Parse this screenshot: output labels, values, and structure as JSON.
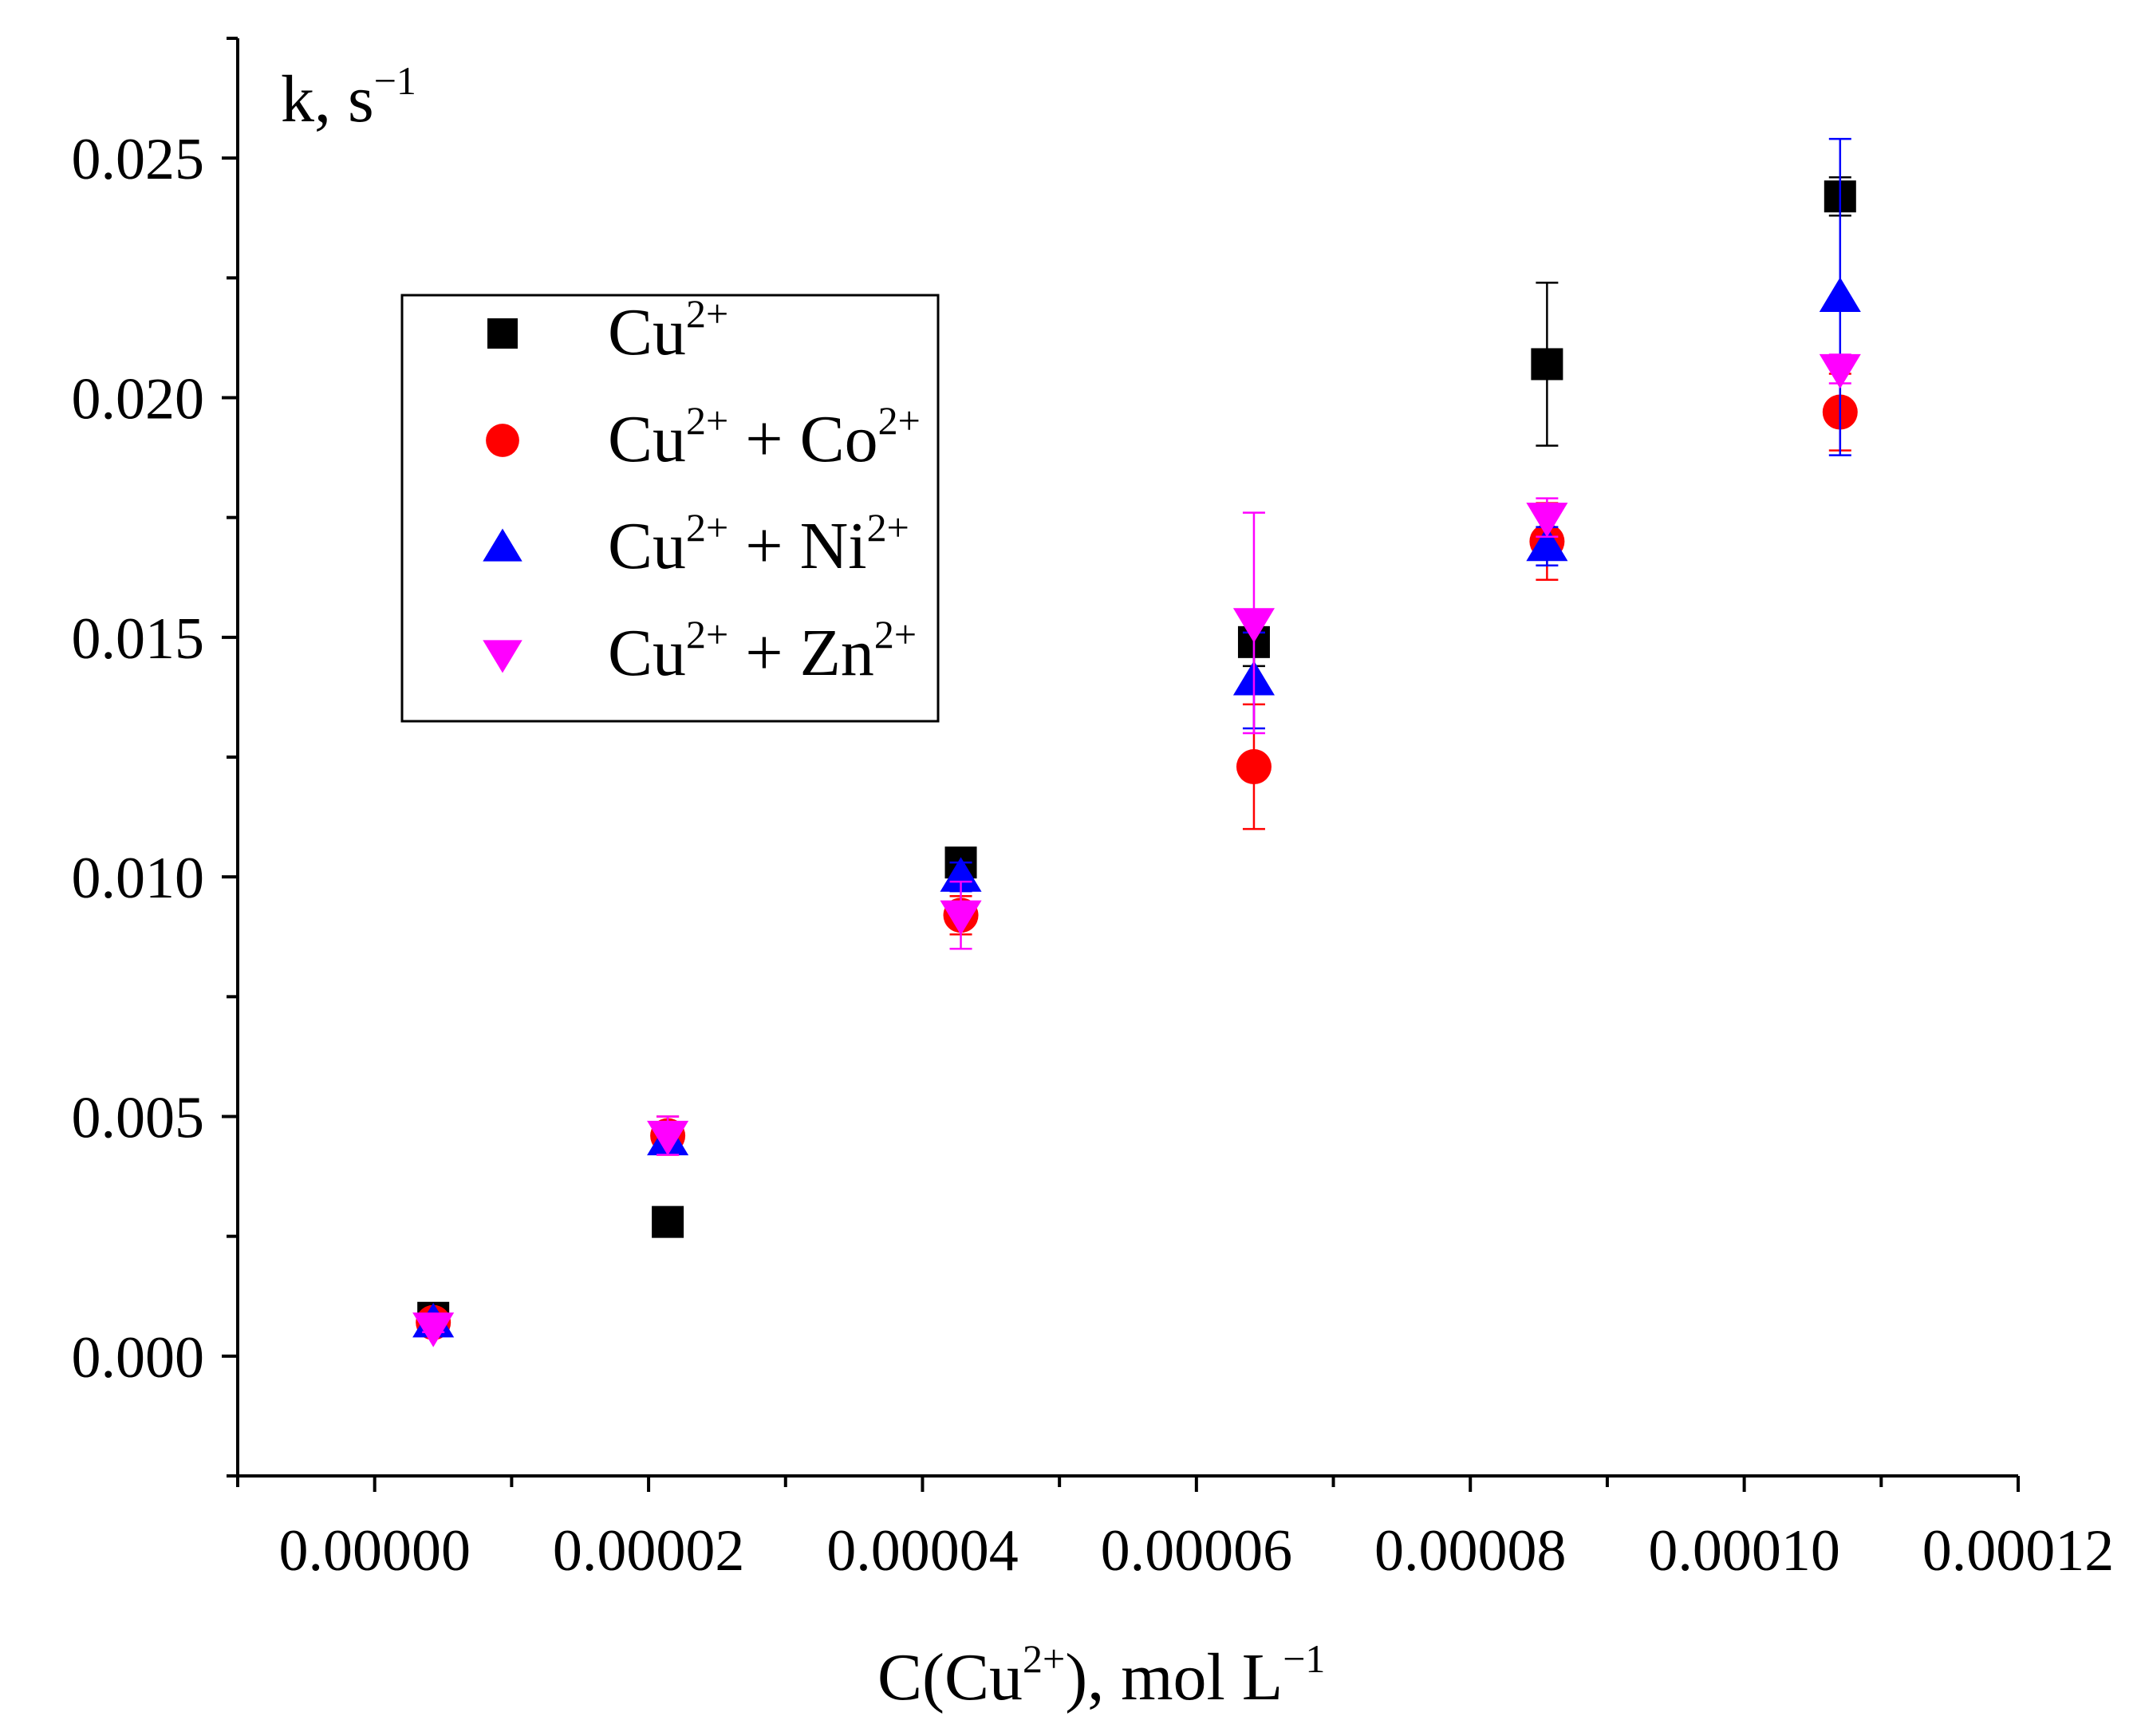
{
  "chart_data": {
    "type": "scatter",
    "title": "",
    "ylabel": {
      "base": "k, s",
      "sup": "−1"
    },
    "xlabel": {
      "pre": "C(Cu",
      "sup1": "2+",
      "mid": "), mol L",
      "sup2": "−1"
    },
    "xlim": [
      -1e-05,
      0.00012
    ],
    "ylim": [
      -0.0025,
      0.0275
    ],
    "x_ticks": [
      0.0,
      2e-05,
      4e-05,
      6e-05,
      8e-05,
      0.0001,
      0.00012
    ],
    "x_tick_labels": [
      "0.00000",
      "0.00002",
      "0.00004",
      "0.00006",
      "0.00008",
      "0.00010",
      "0.00012"
    ],
    "y_ticks": [
      0.0,
      0.005,
      0.01,
      0.015,
      0.02,
      0.025
    ],
    "y_tick_labels": [
      "0.000",
      "0.005",
      "0.010",
      "0.015",
      "0.020",
      "0.025"
    ],
    "legend_position": "upper-left",
    "series": [
      {
        "name": "Cu2+",
        "label_parts": [
          [
            "Cu",
            "2+"
          ]
        ],
        "marker": "square",
        "color": "#000000",
        "x": [
          4.28e-06,
          2.14e-05,
          4.28e-05,
          6.42e-05,
          8.56e-05,
          0.000107
        ],
        "y": [
          0.0008,
          0.0028,
          0.0103,
          0.0149,
          0.0207,
          0.0242
        ],
        "err": [
          0.0001,
          0.0001,
          0.0003,
          0.0005,
          0.0017,
          0.0004
        ]
      },
      {
        "name": "Cu2+ + Co2+",
        "label_parts": [
          [
            "Cu",
            "2+"
          ],
          [
            " + Co",
            "2+"
          ]
        ],
        "marker": "circle",
        "color": "#ff0000",
        "x": [
          4.28e-06,
          2.14e-05,
          4.28e-05,
          6.42e-05,
          8.56e-05,
          0.000107
        ],
        "y": [
          0.0007,
          0.0046,
          0.0092,
          0.0123,
          0.017,
          0.0197
        ],
        "err": [
          0.0001,
          0.0004,
          0.0004,
          0.0013,
          0.0008,
          0.0008
        ]
      },
      {
        "name": "Cu2+ + Ni2+",
        "label_parts": [
          [
            "Cu",
            "2+"
          ],
          [
            " + Ni",
            "2+"
          ]
        ],
        "marker": "triangle-up",
        "color": "#0000ff",
        "x": [
          4.28e-06,
          2.14e-05,
          4.28e-05,
          6.42e-05,
          8.56e-05,
          0.000107
        ],
        "y": [
          0.0007,
          0.0045,
          0.01,
          0.0141,
          0.0169,
          0.0221
        ],
        "err": [
          0.0001,
          0.0002,
          0.0003,
          0.001,
          0.0004,
          0.0033
        ]
      },
      {
        "name": "Cu2+ + Zn2+",
        "label_parts": [
          [
            "Cu",
            "2+"
          ],
          [
            " + Zn",
            "2+"
          ]
        ],
        "marker": "triangle-down",
        "color": "#ff00ff",
        "x": [
          4.28e-06,
          2.14e-05,
          4.28e-05,
          6.42e-05,
          8.56e-05,
          0.000107
        ],
        "y": [
          0.0006,
          0.0046,
          0.0092,
          0.0153,
          0.0175,
          0.0206
        ],
        "err": [
          0.0001,
          0.0004,
          0.0007,
          0.0023,
          0.0004,
          0.0003
        ]
      }
    ]
  }
}
